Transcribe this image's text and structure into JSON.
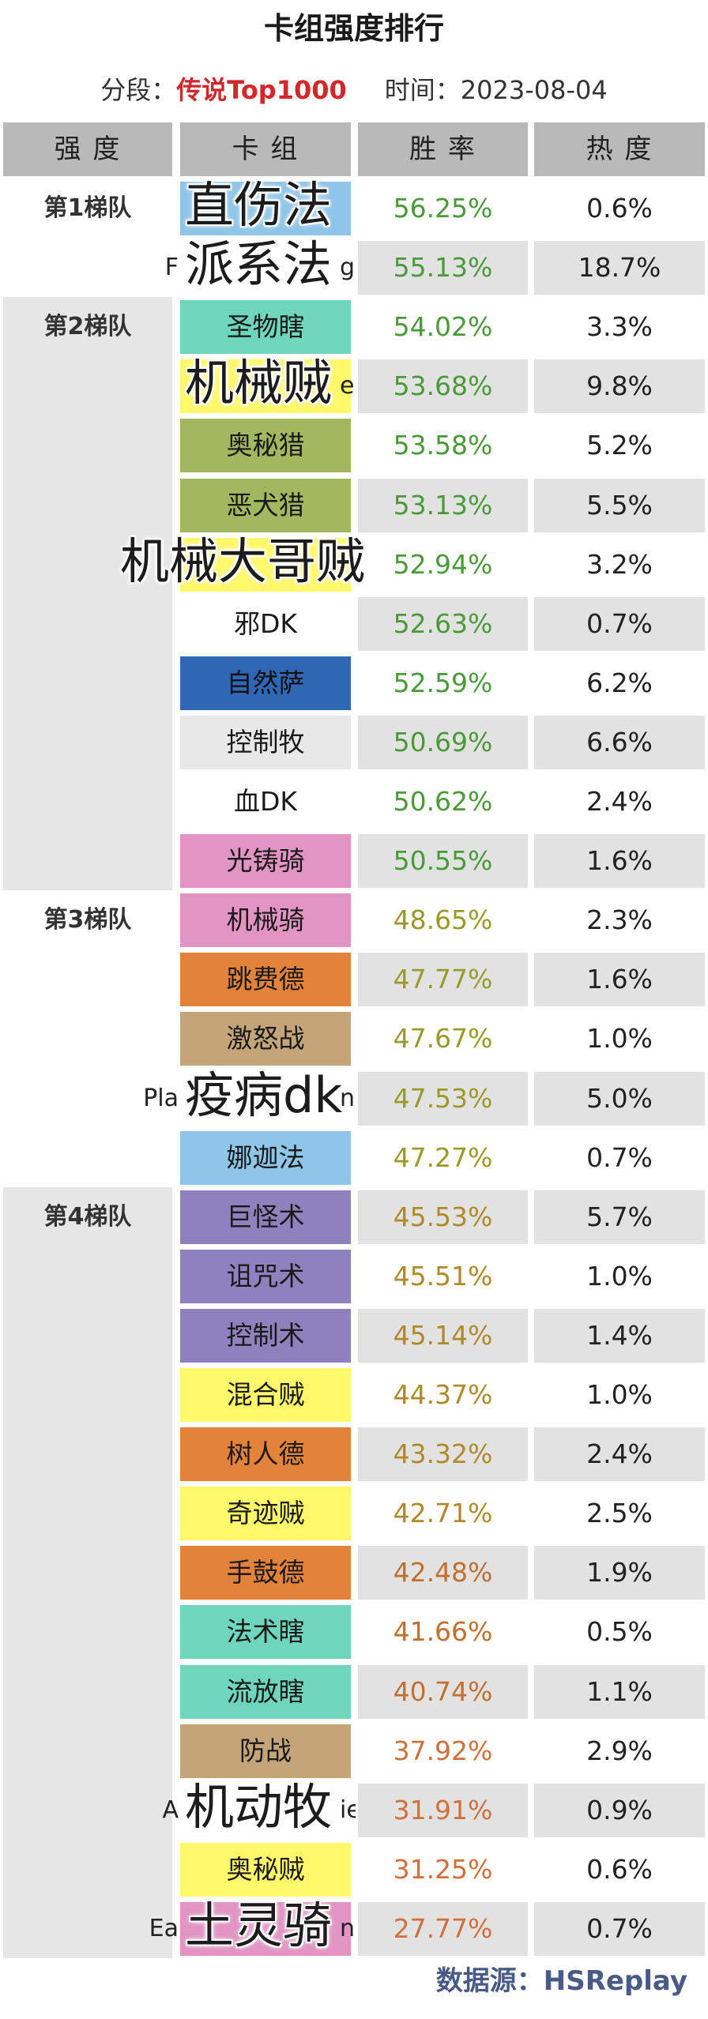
{
  "title": "卡组强度排行",
  "subtitle": {
    "segment_label": "分段：",
    "segment_value": "传说Top1000",
    "time_label": "时间：",
    "time_value": "2023-08-04"
  },
  "headers": {
    "tier": "强 度",
    "deck": "卡 组",
    "winrate": "胜 率",
    "popularity": "热 度"
  },
  "tiers": [
    "第1梯队",
    "第2梯队",
    "第3梯队",
    "第4梯队"
  ],
  "rows": [
    {
      "deck": "直伤法",
      "winrate": "56.25%",
      "pop": "0.6%",
      "tier": 0,
      "bg": "#8ec5e8",
      "rateColor": "#4a9a3a"
    },
    {
      "deck": "派系法",
      "winrate": "55.13%",
      "pop": "18.7%",
      "tier": 0,
      "bg": "#ffffff",
      "rateColor": "#4a9a3a",
      "peek": "F",
      "peekRight": "ge"
    },
    {
      "deck": "圣物瞎",
      "winrate": "54.02%",
      "pop": "3.3%",
      "tier": 1,
      "bg": "#6dd6bd",
      "rateColor": "#4a9a3a"
    },
    {
      "deck": "机械贼",
      "winrate": "53.68%",
      "pop": "9.8%",
      "tier": 1,
      "bg": "#fff86a",
      "rateColor": "#4a9a3a",
      "peekRight": "e"
    },
    {
      "deck": "奥秘猎",
      "winrate": "53.58%",
      "pop": "5.2%",
      "tier": 1,
      "bg": "#a2b75e",
      "rateColor": "#4a9a3a"
    },
    {
      "deck": "恶犬猎",
      "winrate": "53.13%",
      "pop": "5.5%",
      "tier": 1,
      "bg": "#a2b75e",
      "rateColor": "#4a9a3a"
    },
    {
      "deck": "机械大哥贼",
      "winrate": "52.94%",
      "pop": "3.2%",
      "tier": 1,
      "bg": "#fff86a",
      "rateColor": "#4a9a3a"
    },
    {
      "deck": "邪DK",
      "winrate": "52.63%",
      "pop": "0.7%",
      "tier": 1,
      "bg": "#ffffff",
      "rateColor": "#4a9a3a"
    },
    {
      "deck": "自然萨",
      "winrate": "52.59%",
      "pop": "6.2%",
      "tier": 1,
      "bg": "#2f67b5",
      "rateColor": "#4a9a3a"
    },
    {
      "deck": "控制牧",
      "winrate": "50.69%",
      "pop": "6.6%",
      "tier": 1,
      "bg": "#e8e8e8",
      "rateColor": "#4a9a3a"
    },
    {
      "deck": "血DK",
      "winrate": "50.62%",
      "pop": "2.4%",
      "tier": 1,
      "bg": "#ffffff",
      "rateColor": "#4a9a3a"
    },
    {
      "deck": "光铸骑",
      "winrate": "50.55%",
      "pop": "1.6%",
      "tier": 1,
      "bg": "#e294c3",
      "rateColor": "#4a9a3a"
    },
    {
      "deck": "机械骑",
      "winrate": "48.65%",
      "pop": "2.3%",
      "tier": 2,
      "bg": "#e294c3",
      "rateColor": "#9a9a2a"
    },
    {
      "deck": "跳费德",
      "winrate": "47.77%",
      "pop": "1.6%",
      "tier": 2,
      "bg": "#e3833a",
      "rateColor": "#9a9a2a"
    },
    {
      "deck": "激怒战",
      "winrate": "47.67%",
      "pop": "1.0%",
      "tier": 2,
      "bg": "#c4a57a",
      "rateColor": "#9a9a2a"
    },
    {
      "deck": "疫病dk",
      "winrate": "47.53%",
      "pop": "5.0%",
      "tier": 2,
      "bg": "#ffffff",
      "rateColor": "#9a9a2a",
      "peek": "Pla",
      "peekRight": "ni"
    },
    {
      "deck": "娜迦法",
      "winrate": "47.27%",
      "pop": "0.7%",
      "tier": 2,
      "bg": "#8ec5e8",
      "rateColor": "#9a9a2a"
    },
    {
      "deck": "巨怪术",
      "winrate": "45.53%",
      "pop": "5.7%",
      "tier": 3,
      "bg": "#8d82bd",
      "rateColor": "#b08a2a"
    },
    {
      "deck": "诅咒术",
      "winrate": "45.51%",
      "pop": "1.0%",
      "tier": 3,
      "bg": "#8d82bd",
      "rateColor": "#b08a2a"
    },
    {
      "deck": "控制术",
      "winrate": "45.14%",
      "pop": "1.4%",
      "tier": 3,
      "bg": "#8d82bd",
      "rateColor": "#b08a2a"
    },
    {
      "deck": "混合贼",
      "winrate": "44.37%",
      "pop": "1.0%",
      "tier": 3,
      "bg": "#fff86a",
      "rateColor": "#b08a2a"
    },
    {
      "deck": "树人德",
      "winrate": "43.32%",
      "pop": "2.4%",
      "tier": 3,
      "bg": "#e3833a",
      "rateColor": "#b08a2a"
    },
    {
      "deck": "奇迹贼",
      "winrate": "42.71%",
      "pop": "2.5%",
      "tier": 3,
      "bg": "#fff86a",
      "rateColor": "#b08a2a"
    },
    {
      "deck": "手鼓德",
      "winrate": "42.48%",
      "pop": "1.9%",
      "tier": 3,
      "bg": "#e3833a",
      "rateColor": "#c07030"
    },
    {
      "deck": "法术瞎",
      "winrate": "41.66%",
      "pop": "0.5%",
      "tier": 3,
      "bg": "#6dd6bd",
      "rateColor": "#c07030"
    },
    {
      "deck": "流放瞎",
      "winrate": "40.74%",
      "pop": "1.1%",
      "tier": 3,
      "bg": "#6dd6bd",
      "rateColor": "#c07030"
    },
    {
      "deck": "防战",
      "winrate": "37.92%",
      "pop": "2.9%",
      "tier": 3,
      "bg": "#c4a57a",
      "rateColor": "#d0703a"
    },
    {
      "deck": "机动牧",
      "winrate": "31.91%",
      "pop": "0.9%",
      "tier": 3,
      "bg": "#ffffff",
      "rateColor": "#d0703a",
      "peek": "A",
      "peekRight": "ie"
    },
    {
      "deck": "奥秘贼",
      "winrate": "31.25%",
      "pop": "0.6%",
      "tier": 3,
      "bg": "#fff86a",
      "rateColor": "#d0703a"
    },
    {
      "deck": "土灵骑",
      "winrate": "27.77%",
      "pop": "0.7%",
      "tier": 3,
      "bg": "#e294c3",
      "rateColor": "#d0703a",
      "peek": "Ea",
      "peekRight": "ni"
    }
  ],
  "overlay_words": [
    "直伤法",
    "派系法",
    "机械贼",
    "机械大哥贼",
    "疫病dk",
    "机动牧",
    "土灵骑"
  ],
  "footer": "数据源：HSReplay"
}
